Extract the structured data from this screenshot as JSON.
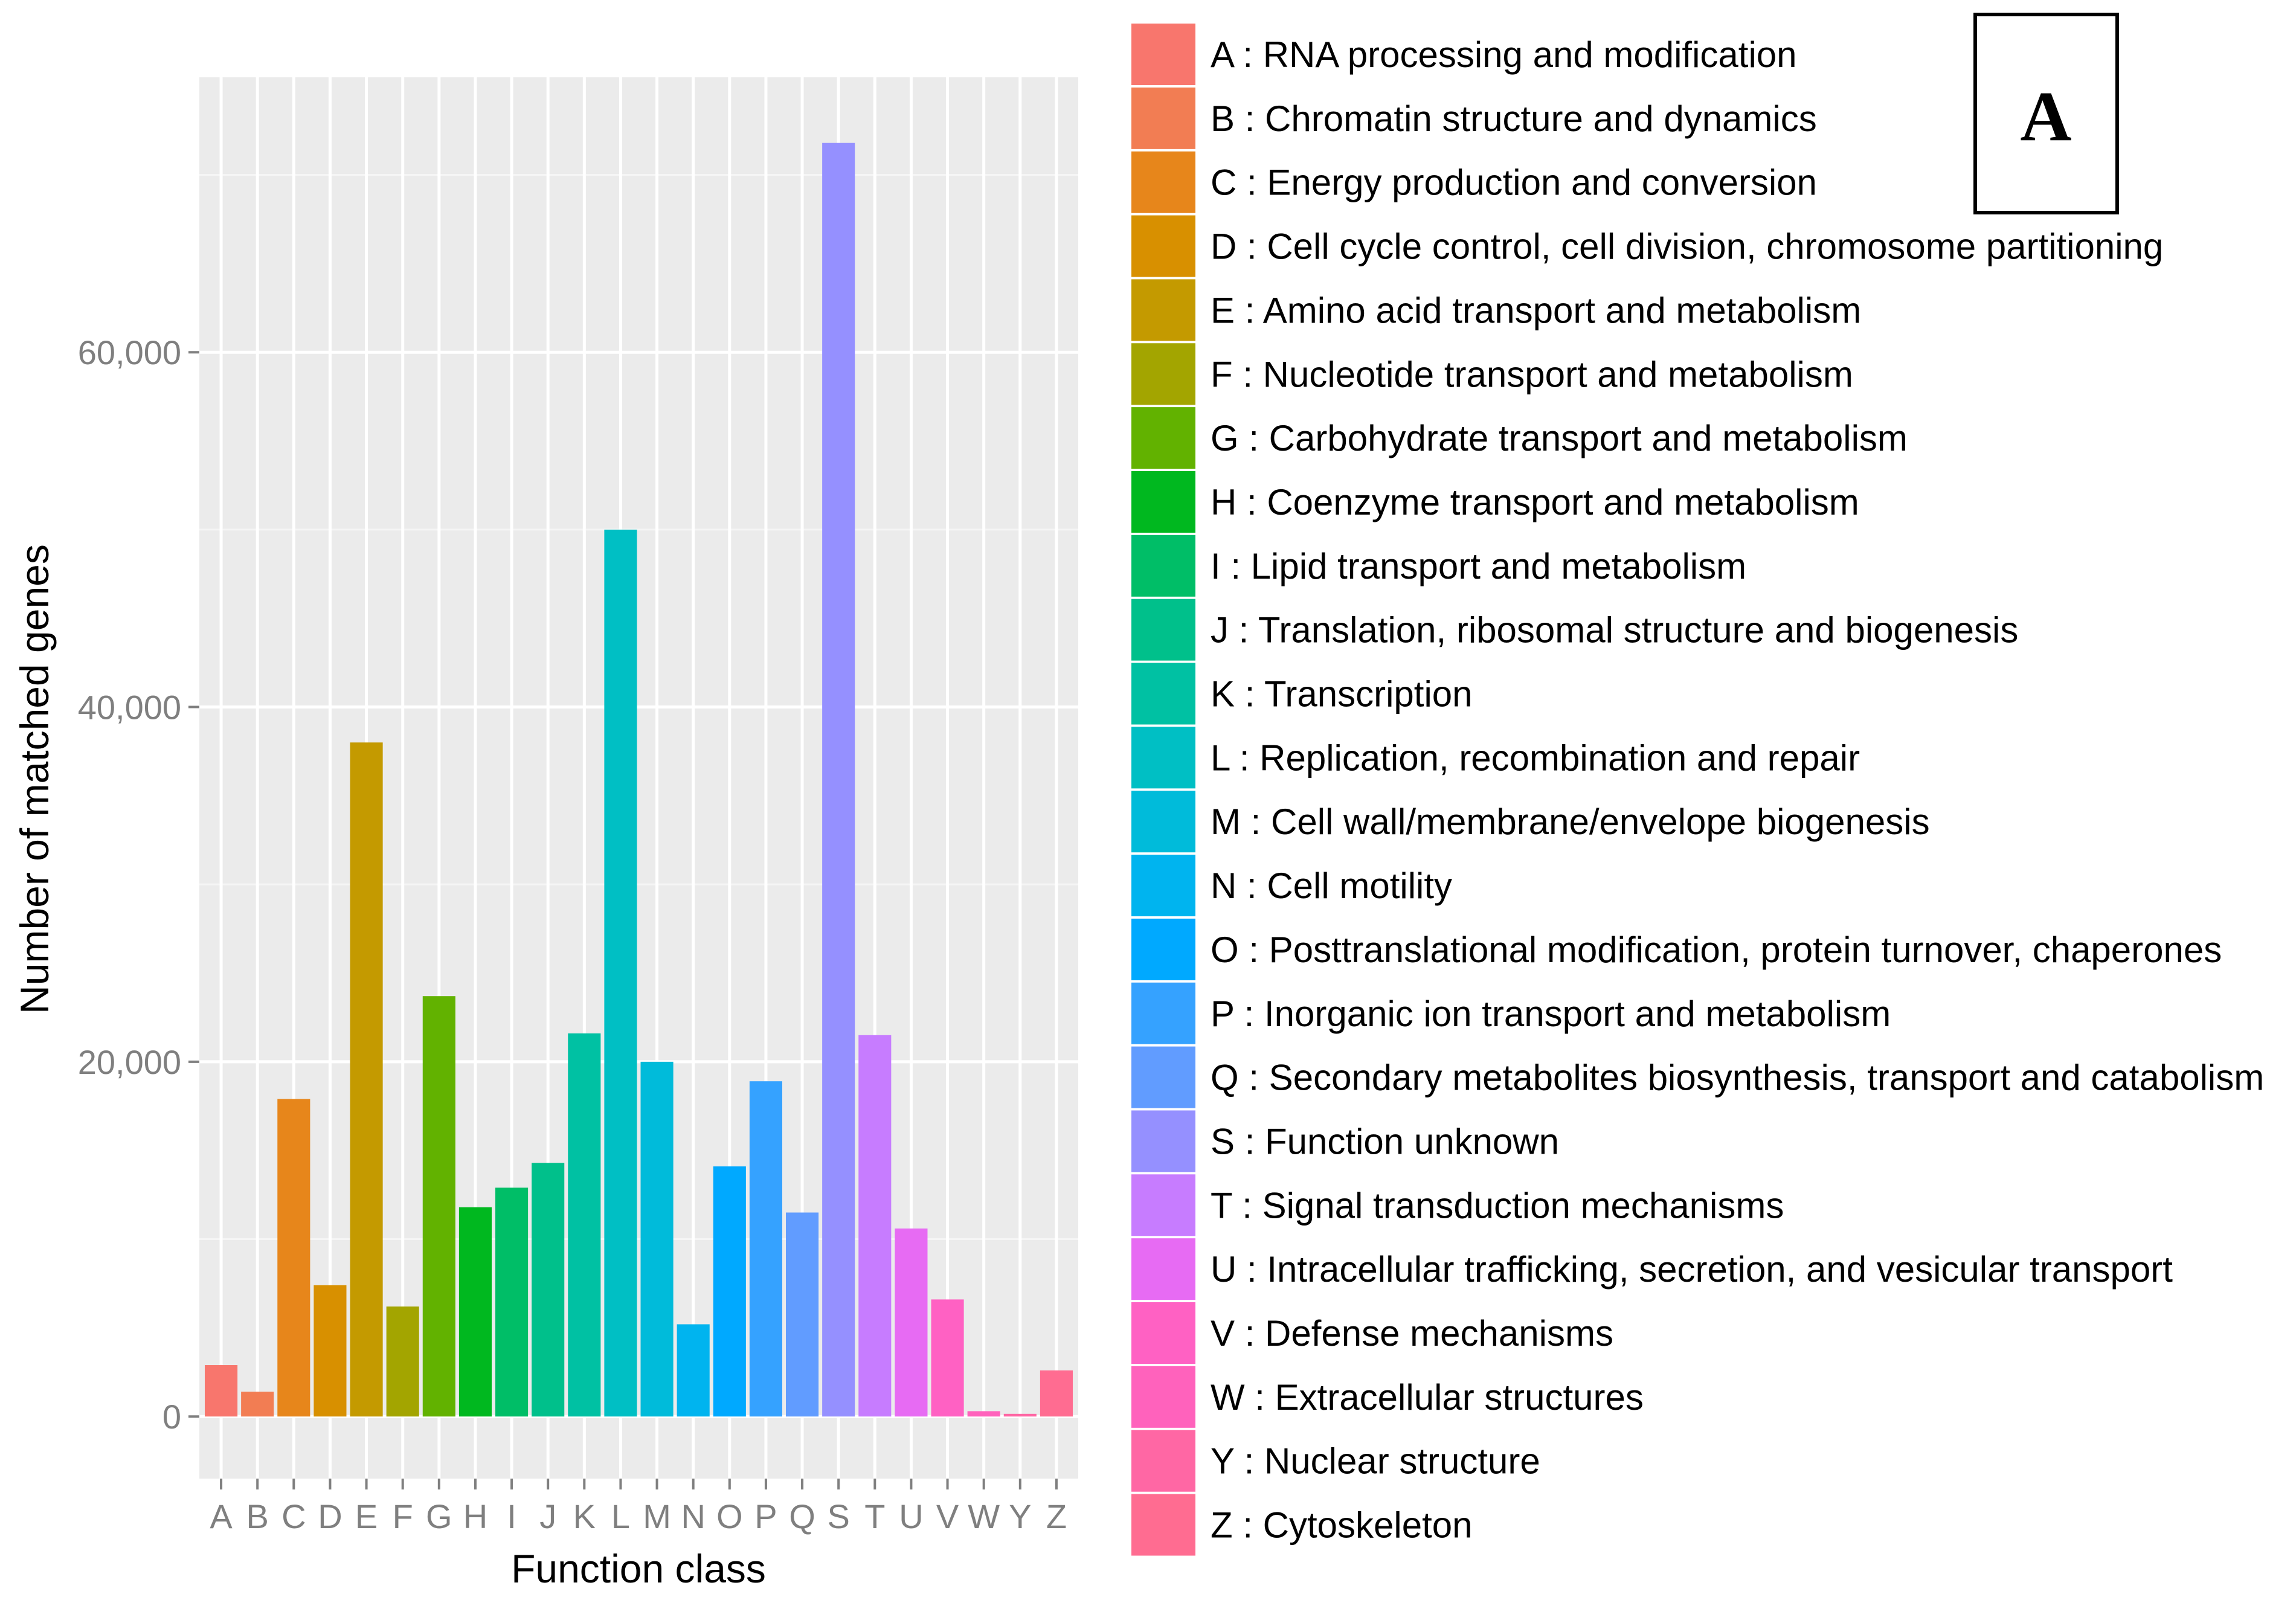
{
  "chart_data": {
    "type": "bar",
    "title": "",
    "panel_label": "A",
    "xlabel": "Function class",
    "ylabel": "Number of matched genes",
    "ylim": [
      -3500,
      75500
    ],
    "y_ticks": [
      0,
      20000,
      40000,
      60000
    ],
    "y_tick_labels": [
      "0",
      "20,000",
      "40,000",
      "60,000"
    ],
    "grid": true,
    "legend_position": "right",
    "categories": [
      "A",
      "B",
      "C",
      "D",
      "E",
      "F",
      "G",
      "H",
      "I",
      "J",
      "K",
      "L",
      "M",
      "N",
      "O",
      "P",
      "Q",
      "S",
      "T",
      "U",
      "V",
      "W",
      "Y",
      "Z"
    ],
    "values": [
      2900,
      1400,
      17900,
      7400,
      38000,
      6200,
      23700,
      11800,
      12900,
      14300,
      21600,
      50000,
      20000,
      5200,
      14100,
      18900,
      11500,
      71800,
      21500,
      10600,
      6600,
      300,
      150,
      2600
    ],
    "colors": [
      "#F8766D",
      "#F27D53",
      "#E7861B",
      "#D89000",
      "#C49A00",
      "#A3A500",
      "#62B200",
      "#00B81F",
      "#00BE67",
      "#00C08B",
      "#00C1A3",
      "#00BFC4",
      "#00BBDA",
      "#00B4EF",
      "#00A9FF",
      "#35A2FF",
      "#619CFF",
      "#9590FF",
      "#C77CFF",
      "#E76BF3",
      "#FF61C3",
      "#FF62BC",
      "#FF67A4",
      "#FF6C91"
    ],
    "legend": [
      "A : RNA processing and modification",
      "B : Chromatin structure and dynamics",
      "C : Energy production and conversion",
      "D : Cell cycle control, cell division, chromosome partitioning",
      "E : Amino acid transport and metabolism",
      "F : Nucleotide transport and metabolism",
      "G : Carbohydrate transport and metabolism",
      "H : Coenzyme transport and metabolism",
      "I : Lipid transport and metabolism",
      "J : Translation, ribosomal structure and biogenesis",
      "K : Transcription",
      "L : Replication, recombination and repair",
      "M : Cell wall/membrane/envelope biogenesis",
      "N : Cell motility",
      "O : Posttranslational modification, protein turnover, chaperones",
      "P : Inorganic ion transport and metabolism",
      "Q : Secondary metabolites biosynthesis, transport and catabolism",
      "S : Function unknown",
      "T : Signal transduction mechanisms",
      "U : Intracellular trafficking, secretion, and vesicular transport",
      "V : Defense mechanisms",
      "W : Extracellular structures",
      "Y : Nuclear structure",
      "Z : Cytoskeleton"
    ]
  }
}
